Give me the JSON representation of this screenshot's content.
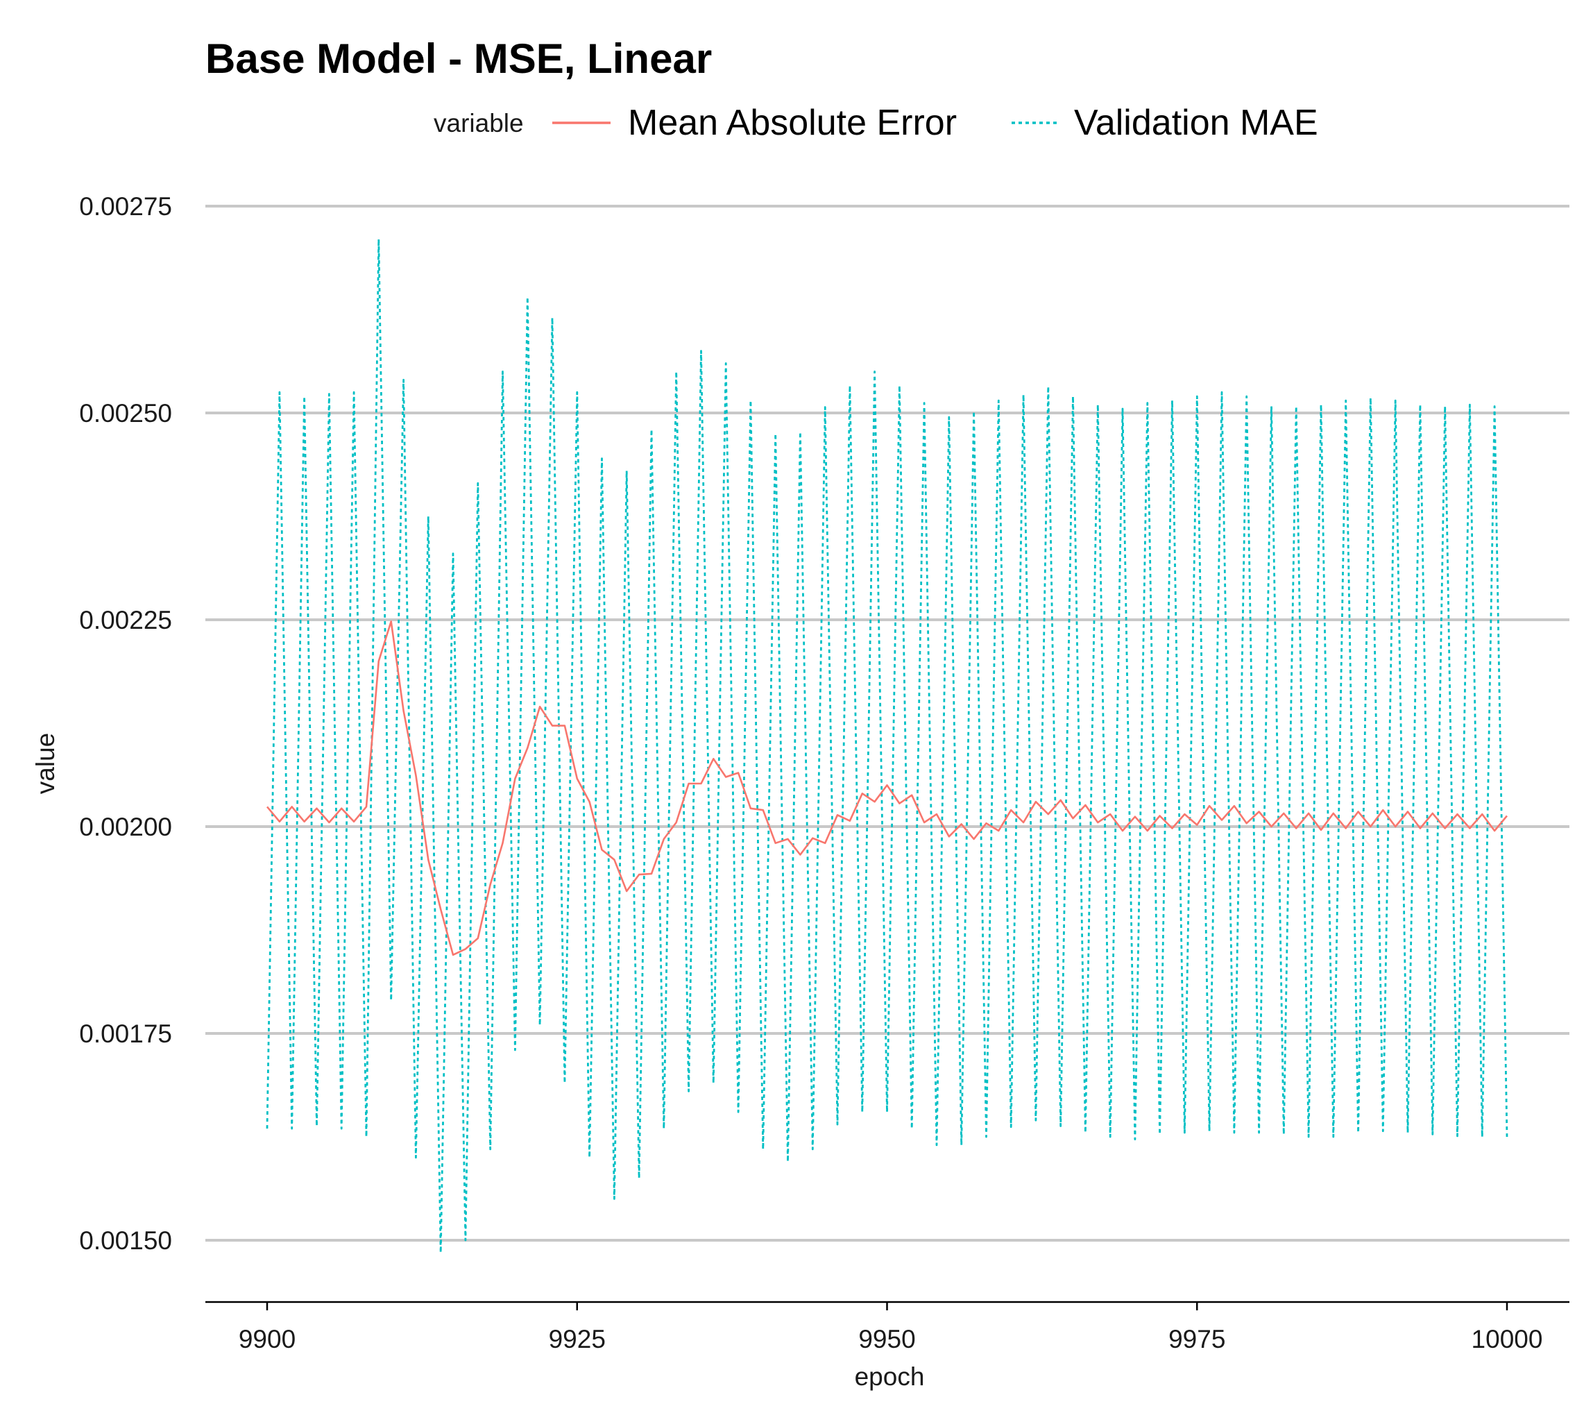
{
  "chart_data": {
    "type": "line",
    "title": "Base Model - MSE, Linear",
    "xlabel": "epoch",
    "ylabel": "value",
    "xlim": [
      9894,
      10005
    ],
    "ylim": [
      0.00142,
      0.00275
    ],
    "x_ticks": [
      9900,
      9925,
      9950,
      9975,
      10000
    ],
    "x_tick_labels": [
      "9900",
      "9925",
      "9950",
      "9975",
      "10000"
    ],
    "y_ticks": [
      0.0015,
      0.00175,
      0.002,
      0.00225,
      0.0025,
      0.00275
    ],
    "y_tick_labels": [
      "0.00150",
      "0.00175",
      "0.00200",
      "0.00225",
      "0.00250",
      "0.00275"
    ],
    "grid": "horizontal major",
    "legend": {
      "title": "variable",
      "position": "top"
    },
    "series": [
      {
        "name": "Mean Absolute Error",
        "color": "#F8766D",
        "linestyle": "solid",
        "x": [
          9900,
          9901,
          9902,
          9903,
          9904,
          9905,
          9906,
          9907,
          9908,
          9909,
          9910,
          9911,
          9912,
          9913,
          9914,
          9915,
          9916,
          9917,
          9918,
          9919,
          9920,
          9921,
          9922,
          9923,
          9924,
          9925,
          9926,
          9927,
          9928,
          9929,
          9930,
          9931,
          9932,
          9933,
          9934,
          9935,
          9936,
          9937,
          9938,
          9939,
          9940,
          9941,
          9942,
          9943,
          9944,
          9945,
          9946,
          9947,
          9948,
          9949,
          9950,
          9951,
          9952,
          9953,
          9954,
          9955,
          9956,
          9957,
          9958,
          9959,
          9960,
          9961,
          9962,
          9963,
          9964,
          9965,
          9966,
          9967,
          9968,
          9969,
          9970,
          9971,
          9972,
          9973,
          9974,
          9975,
          9976,
          9977,
          9978,
          9979,
          9980,
          9981,
          9982,
          9983,
          9984,
          9985,
          9986,
          9987,
          9988,
          9989,
          9990,
          9991,
          9992,
          9993,
          9994,
          9995,
          9996,
          9997,
          9998,
          9999,
          10000
        ],
        "values": [
          0.002024,
          0.002006,
          0.002024,
          0.002006,
          0.002022,
          0.002005,
          0.002022,
          0.002006,
          0.002024,
          0.0022,
          0.002248,
          0.00214,
          0.002062,
          0.00196,
          0.0019,
          0.001845,
          0.001852,
          0.001865,
          0.00193,
          0.00198,
          0.002058,
          0.002095,
          0.002145,
          0.002122,
          0.002122,
          0.002058,
          0.00203,
          0.001972,
          0.00196,
          0.001922,
          0.001942,
          0.001943,
          0.001985,
          0.002005,
          0.002052,
          0.002052,
          0.002082,
          0.00206,
          0.002065,
          0.002022,
          0.00202,
          0.00198,
          0.001985,
          0.001966,
          0.001986,
          0.00198,
          0.002014,
          0.002007,
          0.00204,
          0.00203,
          0.00205,
          0.002028,
          0.002038,
          0.002005,
          0.002015,
          0.001988,
          0.002003,
          0.001985,
          0.002004,
          0.001995,
          0.00202,
          0.002005,
          0.00203,
          0.002015,
          0.002032,
          0.00201,
          0.002026,
          0.002005,
          0.002015,
          0.001995,
          0.002012,
          0.001995,
          0.002013,
          0.001998,
          0.002015,
          0.002002,
          0.002025,
          0.002008,
          0.002025,
          0.002004,
          0.002018,
          0.002,
          0.002016,
          0.001998,
          0.002016,
          0.001996,
          0.002016,
          0.001998,
          0.002018,
          0.002,
          0.00202,
          0.002,
          0.002018,
          0.001998,
          0.002016,
          0.001998,
          0.002015,
          0.001998,
          0.002015,
          0.001995,
          0.002013
        ]
      },
      {
        "name": "Validation MAE",
        "color": "#00BFC4",
        "linestyle": "dotted",
        "x": [
          9900,
          9901,
          9902,
          9903,
          9904,
          9905,
          9906,
          9907,
          9908,
          9909,
          9910,
          9911,
          9912,
          9913,
          9914,
          9915,
          9916,
          9917,
          9918,
          9919,
          9920,
          9921,
          9922,
          9923,
          9924,
          9925,
          9926,
          9927,
          9928,
          9929,
          9930,
          9931,
          9932,
          9933,
          9934,
          9935,
          9936,
          9937,
          9938,
          9939,
          9940,
          9941,
          9942,
          9943,
          9944,
          9945,
          9946,
          9947,
          9948,
          9949,
          9950,
          9951,
          9952,
          9953,
          9954,
          9955,
          9956,
          9957,
          9958,
          9959,
          9960,
          9961,
          9962,
          9963,
          9964,
          9965,
          9966,
          9967,
          9968,
          9969,
          9970,
          9971,
          9972,
          9973,
          9974,
          9975,
          9976,
          9977,
          9978,
          9979,
          9980,
          9981,
          9982,
          9983,
          9984,
          9985,
          9986,
          9987,
          9988,
          9989,
          9990,
          9991,
          9992,
          9993,
          9994,
          9995,
          9996,
          9997,
          9998,
          9999,
          10000
        ],
        "values": [
          0.001635,
          0.002525,
          0.001635,
          0.00252,
          0.001638,
          0.002523,
          0.001635,
          0.002525,
          0.001625,
          0.00271,
          0.00179,
          0.00254,
          0.0016,
          0.002375,
          0.001485,
          0.00233,
          0.0015,
          0.002415,
          0.00161,
          0.00255,
          0.00173,
          0.00264,
          0.00176,
          0.002615,
          0.00169,
          0.002525,
          0.0016,
          0.002445,
          0.00155,
          0.00243,
          0.001575,
          0.00248,
          0.001635,
          0.00255,
          0.00168,
          0.002575,
          0.00169,
          0.00256,
          0.001655,
          0.002515,
          0.00161,
          0.002475,
          0.001595,
          0.002477,
          0.00161,
          0.002507,
          0.00164,
          0.002533,
          0.001655,
          0.00255,
          0.001655,
          0.002533,
          0.001635,
          0.002512,
          0.001615,
          0.002495,
          0.001615,
          0.002502,
          0.001625,
          0.002515,
          0.001637,
          0.002522,
          0.001645,
          0.002532,
          0.001638,
          0.00252,
          0.00163,
          0.00251,
          0.001625,
          0.002505,
          0.001622,
          0.002512,
          0.001628,
          0.002515,
          0.00163,
          0.00252,
          0.001632,
          0.002525,
          0.00163,
          0.00252,
          0.00163,
          0.002508,
          0.001628,
          0.002508,
          0.001625,
          0.00251,
          0.001625,
          0.002515,
          0.00163,
          0.002518,
          0.001632,
          0.002515,
          0.00163,
          0.00251,
          0.001628,
          0.002508,
          0.001626,
          0.00251,
          0.001625,
          0.002508,
          0.001625
        ]
      }
    ]
  }
}
